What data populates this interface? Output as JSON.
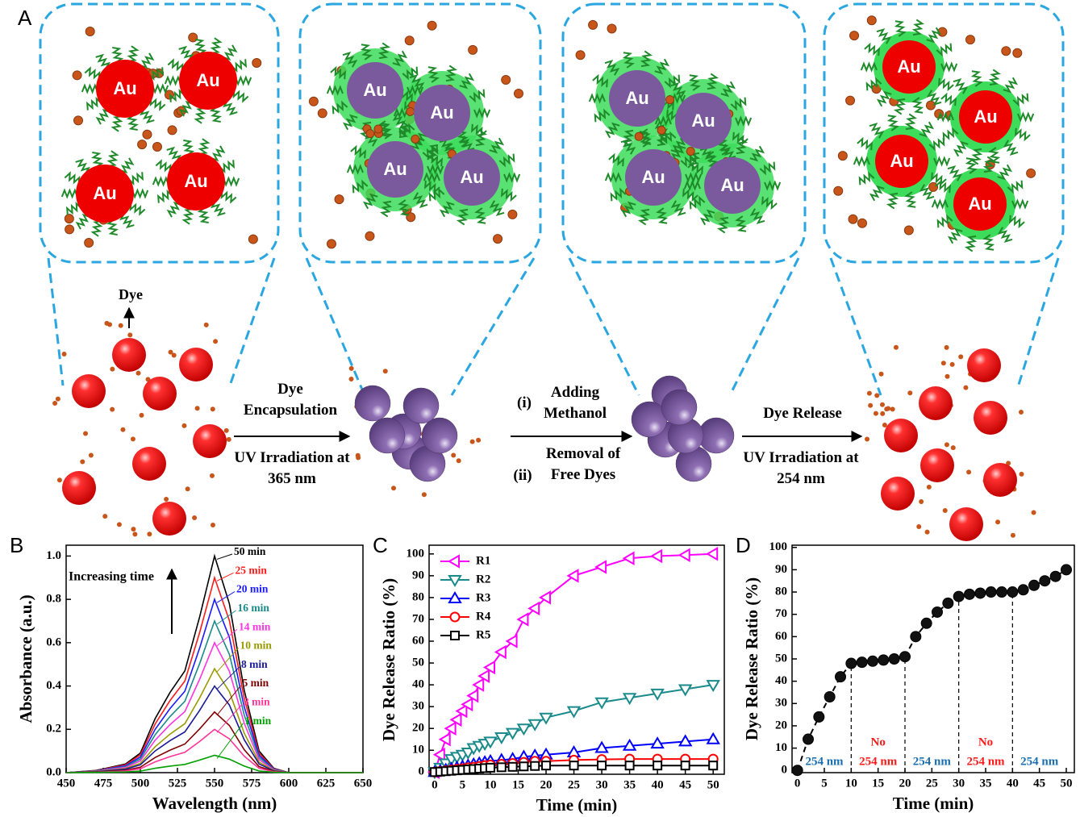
{
  "diagram": {
    "label": "A",
    "particle_label": "Au",
    "dye_label": "Dye",
    "steps": [
      {
        "title": "Dye Encapsulation",
        "condition": "UV Irradiation at 365 nm"
      },
      {
        "items": [
          {
            "marker": "(i)",
            "text": "Adding Methanol"
          },
          {
            "marker": "(ii)",
            "text": "Removal of Free Dyes"
          }
        ]
      },
      {
        "title": "Dye Release",
        "condition": "UV Irradiation at 254 nm"
      }
    ]
  },
  "chart_data": [
    {
      "type": "line",
      "panel": "B",
      "xlabel": "Wavelength (nm)",
      "ylabel": "Absorbance (a.u.)",
      "annotation": "Increasing time",
      "xlim": [
        450,
        650
      ],
      "xticks": [
        450,
        475,
        500,
        525,
        550,
        575,
        600,
        625,
        650
      ],
      "ylim": [
        0,
        1.05
      ],
      "yticks": [
        {
          "value": 0,
          "label": "0.0"
        },
        0.2,
        0.4,
        0.6,
        0.8,
        {
          "value": 1,
          "label": "1.0"
        }
      ],
      "marker": "none",
      "x": [
        450,
        470,
        490,
        500,
        510,
        520,
        530,
        540,
        550,
        560,
        570,
        580,
        590,
        600,
        650
      ],
      "series": [
        {
          "name": "50 min",
          "color": "#000000",
          "values": [
            0,
            0.01,
            0.04,
            0.09,
            0.25,
            0.37,
            0.47,
            0.72,
            1,
            0.78,
            0.38,
            0.1,
            0.02,
            0,
            0
          ]
        },
        {
          "name": "25 min",
          "color": "#ff1a1a",
          "values": [
            0,
            0.009,
            0.036,
            0.081,
            0.225,
            0.333,
            0.423,
            0.648,
            0.9,
            0.702,
            0.342,
            0.09,
            0.018,
            0,
            0
          ]
        },
        {
          "name": "20 min",
          "color": "#1a1aff",
          "values": [
            0,
            0.008,
            0.032,
            0.072,
            0.2,
            0.296,
            0.376,
            0.576,
            0.8,
            0.624,
            0.304,
            0.08,
            0.016,
            0,
            0
          ]
        },
        {
          "name": "16 min",
          "color": "#1a8a8a",
          "values": [
            0,
            0.007,
            0.028,
            0.063,
            0.175,
            0.259,
            0.329,
            0.504,
            0.7,
            0.546,
            0.266,
            0.07,
            0.014,
            0,
            0
          ]
        },
        {
          "name": "14 min",
          "color": "#ff33e0",
          "values": [
            0,
            0.006,
            0.024,
            0.054,
            0.15,
            0.222,
            0.282,
            0.432,
            0.6,
            0.468,
            0.228,
            0.06,
            0.012,
            0,
            0
          ]
        },
        {
          "name": "10 min",
          "color": "#9a9a00",
          "values": [
            0,
            0.005,
            0.019,
            0.043,
            0.12,
            0.178,
            0.226,
            0.346,
            0.48,
            0.374,
            0.182,
            0.048,
            0.01,
            0,
            0
          ]
        },
        {
          "name": "8 min",
          "color": "#1a1a99",
          "values": [
            0,
            0.004,
            0.016,
            0.036,
            0.1,
            0.148,
            0.188,
            0.288,
            0.4,
            0.312,
            0.152,
            0.04,
            0.008,
            0,
            0
          ]
        },
        {
          "name": "5 min",
          "color": "#800000",
          "values": [
            0,
            0.003,
            0.011,
            0.025,
            0.07,
            0.104,
            0.132,
            0.202,
            0.28,
            0.218,
            0.106,
            0.028,
            0.006,
            0,
            0
          ]
        },
        {
          "name": "3 min",
          "color": "#ff3399",
          "values": [
            0,
            0.002,
            0.008,
            0.018,
            0.05,
            0.074,
            0.094,
            0.144,
            0.2,
            0.156,
            0.076,
            0.02,
            0.004,
            0,
            0
          ]
        },
        {
          "name": "1 min",
          "color": "#00a000",
          "values": [
            0,
            0.001,
            0.003,
            0.007,
            0.02,
            0.03,
            0.038,
            0.058,
            0.08,
            0.062,
            0.03,
            0.008,
            0.002,
            0,
            0
          ]
        }
      ]
    },
    {
      "type": "line",
      "panel": "C",
      "xlabel": "Time (min)",
      "ylabel": "Dye Release Ratio (%)",
      "xlim": [
        -1,
        52
      ],
      "xticks": [
        0,
        5,
        10,
        15,
        20,
        25,
        30,
        35,
        40,
        45,
        50
      ],
      "ylim": [
        -1,
        104
      ],
      "yticks": [
        0,
        10,
        20,
        30,
        40,
        50,
        60,
        70,
        80,
        90,
        100
      ],
      "legend": "upper left",
      "x": [
        0,
        1,
        2,
        3,
        4,
        5,
        6,
        7,
        8,
        9,
        10,
        12,
        14,
        16,
        18,
        20,
        25,
        30,
        35,
        40,
        45,
        50
      ],
      "series": [
        {
          "name": "R1",
          "color": "#ff00ff",
          "marker": "triangle-left",
          "values": [
            0,
            8,
            15,
            20,
            24,
            28,
            31,
            35,
            40,
            44,
            48,
            55,
            60,
            70,
            75,
            80,
            90,
            94,
            98,
            99,
            99.5,
            100
          ]
        },
        {
          "name": "R2",
          "color": "#1a8a8a",
          "marker": "triangle-down",
          "values": [
            0,
            2,
            4,
            6,
            7,
            8,
            9,
            11,
            12,
            13,
            14,
            16,
            18,
            20,
            22,
            25,
            28,
            32,
            34,
            36,
            38,
            40
          ]
        },
        {
          "name": "R3",
          "color": "#0000ff",
          "marker": "triangle-up",
          "values": [
            0,
            0.5,
            1,
            1.5,
            2,
            2.5,
            3,
            3.5,
            4,
            4.5,
            5,
            5.5,
            6,
            7,
            7.5,
            8,
            9,
            11,
            12,
            13,
            14,
            15
          ]
        },
        {
          "name": "R4",
          "color": "#ff0000",
          "marker": "circle",
          "values": [
            0,
            0.3,
            0.6,
            1,
            1.3,
            1.6,
            2,
            2.3,
            2.6,
            3,
            3.3,
            3.6,
            4,
            4.5,
            5,
            5,
            5.5,
            5.8,
            6,
            6,
            6,
            6
          ]
        },
        {
          "name": "R5",
          "color": "#000000",
          "marker": "square",
          "values": [
            0,
            0.2,
            0.4,
            0.6,
            0.8,
            1,
            1.2,
            1.4,
            1.6,
            1.8,
            2,
            2.2,
            2.4,
            2.6,
            2.8,
            3,
            3,
            3,
            3,
            3,
            3,
            3
          ]
        }
      ]
    },
    {
      "type": "line",
      "panel": "D",
      "xlabel": "Time (min)",
      "ylabel": "Dye Release Ratio (%)",
      "xlim": [
        -1,
        51.5
      ],
      "xticks": [
        0,
        5,
        10,
        15,
        20,
        25,
        30,
        35,
        40,
        45,
        50
      ],
      "ylim": [
        -1,
        101
      ],
      "yticks": [
        0,
        10,
        20,
        30,
        40,
        50,
        60,
        70,
        80,
        90,
        100
      ],
      "line_style": "dashed",
      "boundaries": [
        10,
        20,
        30,
        40
      ],
      "regions": [
        {
          "lines": [
            "254 nm"
          ],
          "color": "#1a6fb0"
        },
        {
          "lines": [
            "No",
            "254 nm"
          ],
          "color": "#ff1a1a"
        },
        {
          "lines": [
            "254 nm"
          ],
          "color": "#1a6fb0"
        },
        {
          "lines": [
            "No",
            "254 nm"
          ],
          "color": "#ff1a1a"
        },
        {
          "lines": [
            "254 nm"
          ],
          "color": "#1a6fb0"
        }
      ],
      "x": [
        0,
        2,
        4,
        6,
        8,
        10,
        12,
        14,
        16,
        18,
        20,
        22,
        24,
        26,
        28,
        30,
        32,
        34,
        36,
        38,
        40,
        42,
        44,
        46,
        48,
        50
      ],
      "series": [
        {
          "name": null,
          "color": "#000000",
          "marker": "filled-circle",
          "values": [
            0,
            14,
            24,
            33,
            42,
            48,
            48.5,
            49,
            49.5,
            50,
            51,
            60,
            66,
            71,
            75,
            78,
            79,
            79.5,
            80,
            80,
            80,
            81,
            83,
            85,
            87,
            90
          ]
        }
      ]
    }
  ]
}
